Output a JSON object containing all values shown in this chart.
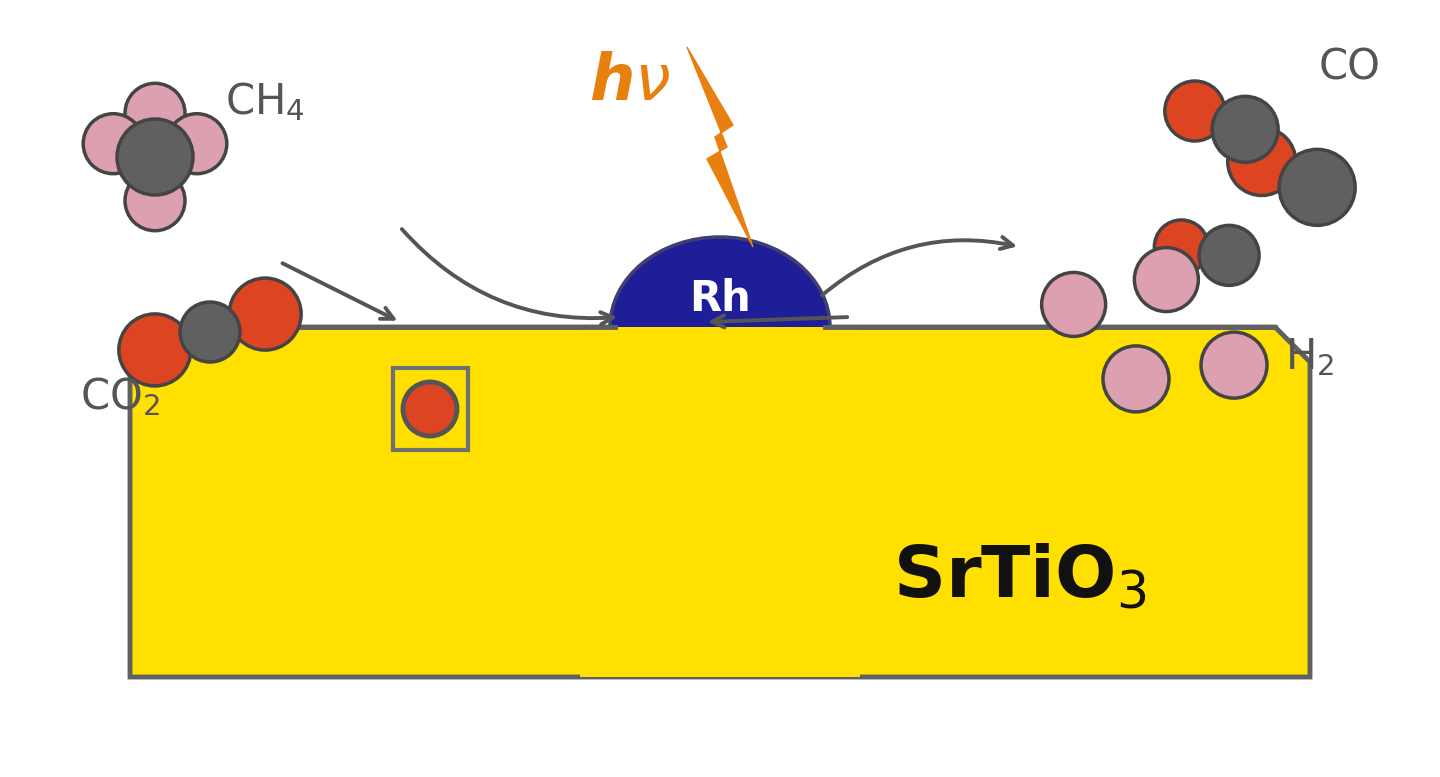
{
  "bg_color": "#ffffff",
  "srtio3_color": "#FFE000",
  "srtio3_border": "#606060",
  "rh_color": "#1e1e99",
  "rh_border": "#404070",
  "atom_dark": "#606060",
  "atom_red": "#dd4422",
  "atom_pink": "#dda0b0",
  "atom_outline": "#444444",
  "arrow_color": "#555555",
  "hv_color": "#e88010",
  "label_color": "#555555",
  "srtio3_label_color": "#111111",
  "rh_text_color": "#ffffff",
  "vacancy_border": "#707070",
  "vacancy_fill": "#FFE000",
  "vacancy_circle_outline": "#555555"
}
